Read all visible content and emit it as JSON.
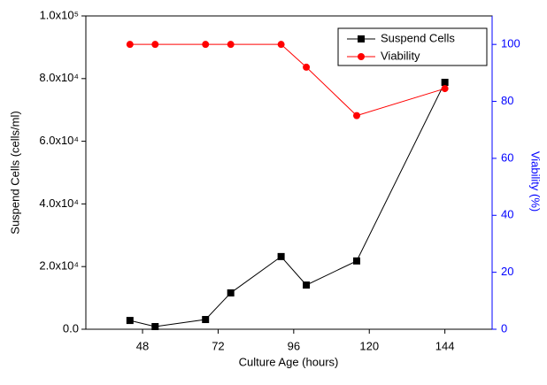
{
  "chart_data": {
    "type": "line",
    "xlabel": "Culture Age (hours)",
    "ylabel": "Suspend Cells (cells/ml)",
    "y2label": "Viability (%)",
    "x": [
      44,
      52,
      68,
      76,
      92,
      100,
      116,
      144
    ],
    "xlim": [
      30,
      159
    ],
    "xticks": [
      48,
      72,
      96,
      120,
      144
    ],
    "ylim": [
      0,
      100000
    ],
    "yticks": [
      {
        "value": 0,
        "label": "0.0"
      },
      {
        "value": 20000,
        "label": "2.0x10⁴"
      },
      {
        "value": 40000,
        "label": "4.0x10⁴"
      },
      {
        "value": 60000,
        "label": "6.0x10⁴"
      },
      {
        "value": 80000,
        "label": "8.0x10⁴"
      },
      {
        "value": 100000,
        "label": "1.0x10⁵"
      }
    ],
    "y2lim": [
      0,
      110
    ],
    "y2ticks": [
      0,
      20,
      40,
      60,
      80,
      100
    ],
    "y2color": "#0000ff",
    "legend": "upper right",
    "series": [
      {
        "name": "Suspend Cells",
        "color": "#000000",
        "marker": "square",
        "values": [
          2800,
          850,
          3100,
          11600,
          23200,
          14100,
          21800,
          78800
        ]
      },
      {
        "name": "Viability",
        "color": "#ff0000",
        "marker": "circle",
        "axis": "y2",
        "values": [
          100,
          100,
          100,
          100,
          100,
          92,
          75,
          84.5
        ]
      }
    ]
  }
}
